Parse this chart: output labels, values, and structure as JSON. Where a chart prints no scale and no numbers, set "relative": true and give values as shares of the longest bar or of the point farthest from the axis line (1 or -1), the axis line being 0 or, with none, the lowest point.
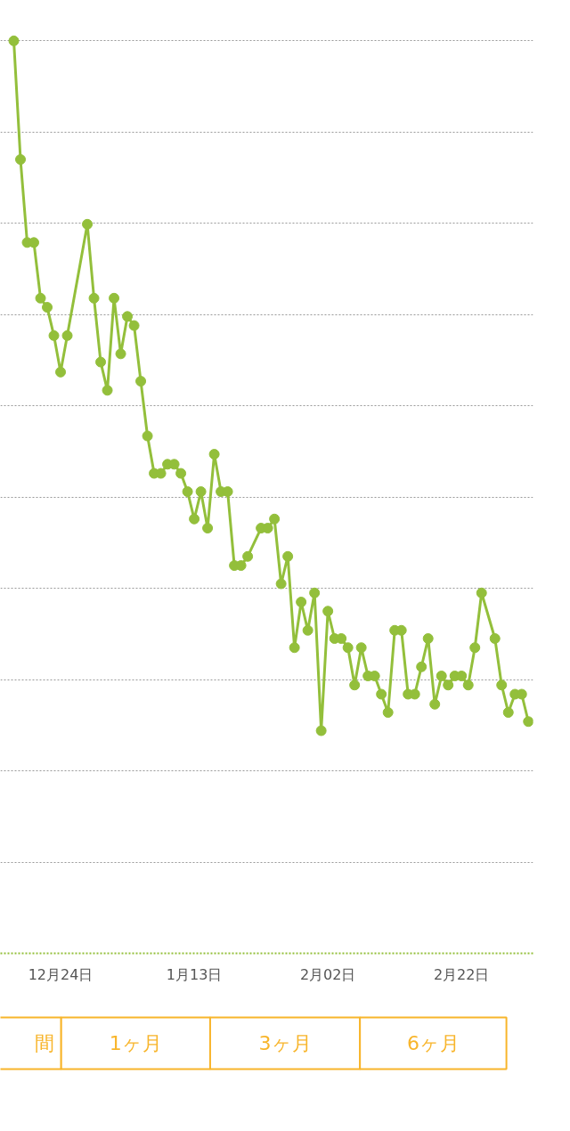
{
  "chart_data": {
    "type": "line",
    "relative": true,
    "color": "#93bf3b",
    "marker": "circle",
    "line_style": "solid",
    "grid": "y",
    "tick_labels": "x",
    "categories": [
      null,
      null,
      null,
      null,
      null,
      null,
      null,
      "12月24日",
      null,
      null,
      null,
      null,
      null,
      null,
      null,
      null,
      null,
      null,
      null,
      null,
      null,
      null,
      null,
      null,
      null,
      null,
      null,
      "1月13日",
      null,
      null,
      null,
      null,
      null,
      null,
      null,
      null,
      null,
      null,
      null,
      null,
      null,
      null,
      null,
      null,
      null,
      null,
      null,
      "2月02日",
      null,
      null,
      null,
      null,
      null,
      null,
      null,
      null,
      null,
      null,
      null,
      null,
      null,
      null,
      null,
      null,
      null,
      null,
      null,
      "2月22日",
      null,
      null,
      null,
      null,
      null,
      null,
      null,
      null,
      null,
      null
    ],
    "values": [
      1.0,
      0.87,
      0.779,
      0.779,
      0.718,
      0.708,
      0.677,
      0.637,
      0.677,
      null,
      null,
      0.799,
      0.718,
      0.648,
      0.617,
      0.718,
      0.657,
      0.698,
      0.688,
      0.627,
      0.567,
      0.526,
      0.526,
      0.536,
      0.536,
      0.526,
      0.506,
      0.476,
      0.506,
      0.466,
      0.547,
      0.506,
      0.506,
      0.425,
      0.425,
      0.435,
      null,
      0.466,
      0.466,
      0.476,
      0.405,
      0.435,
      0.335,
      0.385,
      0.354,
      0.395,
      0.244,
      0.375,
      0.345,
      0.345,
      0.335,
      0.294,
      0.335,
      0.304,
      0.304,
      0.284,
      0.264,
      0.354,
      0.354,
      0.284,
      0.284,
      0.314,
      0.345,
      0.273,
      0.304,
      0.294,
      0.304,
      0.304,
      0.294,
      0.335,
      0.395,
      null,
      0.345,
      0.294,
      0.264,
      0.284,
      0.284,
      0.254
    ],
    "annotations": [
      "間",
      "1ヶ月",
      "3ヶ月",
      "6ヶ月"
    ]
  }
}
